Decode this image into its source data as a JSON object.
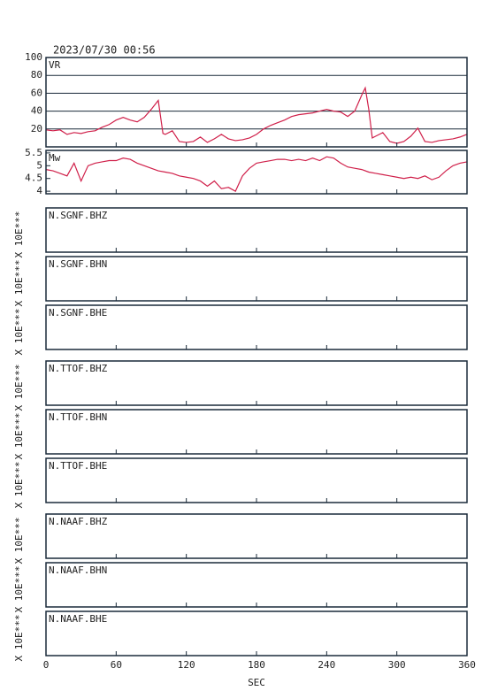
{
  "timestamp": "2023/07/30 00:56",
  "chart_data": [
    {
      "type": "line",
      "label": "VR",
      "color": "#d0204a",
      "grid": true,
      "xlim": [
        0,
        360
      ],
      "ylim": [
        0,
        100
      ],
      "yticks": [
        20,
        40,
        60,
        80,
        100
      ],
      "x": [
        0,
        6,
        12,
        18,
        24,
        30,
        36,
        42,
        48,
        54,
        60,
        66,
        72,
        78,
        84,
        90,
        96,
        100,
        102,
        108,
        114,
        120,
        126,
        132,
        138,
        144,
        150,
        156,
        162,
        168,
        174,
        180,
        186,
        192,
        198,
        204,
        210,
        216,
        222,
        228,
        234,
        240,
        246,
        252,
        258,
        264,
        270,
        273,
        276,
        279,
        282,
        288,
        294,
        300,
        306,
        312,
        318,
        324,
        330,
        336,
        342,
        348,
        354,
        360
      ],
      "values": [
        19,
        18,
        19,
        14,
        16,
        15,
        17,
        18,
        22,
        25,
        30,
        33,
        30,
        28,
        33,
        42,
        52,
        15,
        14,
        18,
        6,
        5,
        6,
        11,
        5,
        9,
        14,
        9,
        7,
        8,
        10,
        14,
        20,
        24,
        27,
        30,
        34,
        36,
        37,
        38,
        40,
        42,
        40,
        39,
        34,
        40,
        58,
        66,
        42,
        10,
        12,
        16,
        6,
        4,
        6,
        12,
        21,
        6,
        5,
        7,
        8,
        9,
        11,
        14
      ]
    },
    {
      "type": "line",
      "label": "Mw",
      "color": "#d0204a",
      "grid": false,
      "xlim": [
        0,
        360
      ],
      "ylim": [
        3.9,
        5.6
      ],
      "yticks": [
        4.0,
        4.5,
        5.0,
        5.5
      ],
      "x": [
        0,
        6,
        12,
        18,
        24,
        30,
        36,
        42,
        48,
        54,
        60,
        66,
        72,
        78,
        84,
        90,
        96,
        102,
        108,
        114,
        120,
        126,
        132,
        138,
        144,
        150,
        156,
        162,
        168,
        174,
        180,
        186,
        192,
        198,
        204,
        210,
        216,
        222,
        228,
        234,
        240,
        246,
        252,
        258,
        264,
        270,
        276,
        282,
        288,
        294,
        300,
        306,
        312,
        318,
        324,
        330,
        336,
        342,
        348,
        354,
        360
      ],
      "values": [
        4.85,
        4.8,
        4.7,
        4.6,
        5.1,
        4.4,
        5.0,
        5.1,
        5.15,
        5.2,
        5.2,
        5.3,
        5.25,
        5.1,
        5.0,
        4.9,
        4.8,
        4.75,
        4.7,
        4.6,
        4.55,
        4.5,
        4.4,
        4.2,
        4.4,
        4.1,
        4.15,
        4.0,
        4.6,
        4.9,
        5.1,
        5.15,
        5.2,
        5.25,
        5.25,
        5.2,
        5.25,
        5.2,
        5.3,
        5.2,
        5.35,
        5.3,
        5.1,
        4.95,
        4.9,
        4.85,
        4.75,
        4.7,
        4.65,
        4.6,
        4.55,
        4.5,
        4.55,
        4.5,
        4.6,
        4.45,
        4.55,
        4.8,
        5.0,
        5.1,
        5.15
      ]
    }
  ],
  "traces": [
    {
      "label": "N.SGNF.BHZ",
      "ylabel": "X 10E***"
    },
    {
      "label": "N.SGNF.BHN",
      "ylabel": "X 10E***"
    },
    {
      "label": "N.SGNF.BHE",
      "ylabel": "X 10E***"
    },
    {
      "label": "N.TTOF.BHZ",
      "ylabel": "X 10E***"
    },
    {
      "label": "N.TTOF.BHN",
      "ylabel": "X 10E***"
    },
    {
      "label": "N.TTOF.BHE",
      "ylabel": "X 10E***"
    },
    {
      "label": "N.NAAF.BHZ",
      "ylabel": "X 10E***"
    },
    {
      "label": "N.NAAF.BHN",
      "ylabel": "X 10E***"
    },
    {
      "label": "N.NAAF.BHE",
      "ylabel": "X 10E***"
    }
  ],
  "time_axis": {
    "xlim": [
      0,
      360
    ],
    "xticks": [
      0,
      60,
      120,
      180,
      240,
      300,
      360
    ],
    "xlabel": "SEC"
  }
}
